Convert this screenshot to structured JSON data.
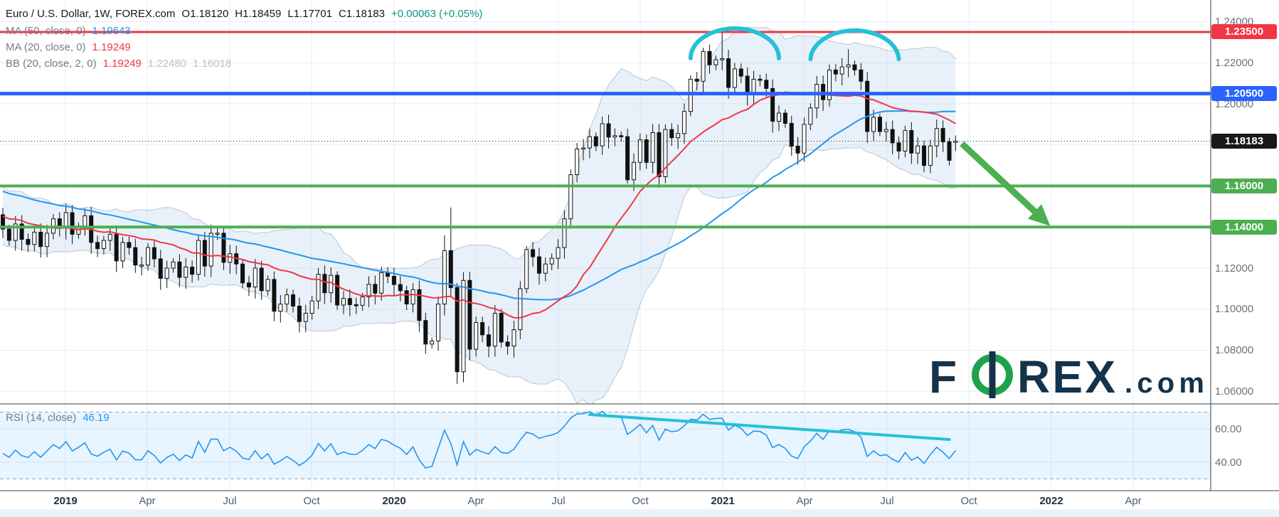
{
  "header": {
    "symbol_line": {
      "title": "Euro / U.S. Dollar, 1W, FOREX.com",
      "open": "O1.18120",
      "high": "H1.18459",
      "low": "L1.17701",
      "close": "C1.18183",
      "change": "+0.00063 (+0.05%)"
    },
    "ma50_row": {
      "label": "MA (50, close, 0)",
      "value": "1.19643"
    },
    "ma20_row": {
      "label": "MA (20, close, 0)",
      "value": "1.19249"
    },
    "bb_row": {
      "label": "BB (20, close, 2, 0)",
      "basis": "1.19249",
      "upper": "1.22480",
      "lower": "1.16018"
    }
  },
  "rsi_pane": {
    "label": "RSI (14, close)",
    "value": "46.19"
  },
  "price_axis": {
    "labels": [
      {
        "text": "1.24000",
        "price": 1.24
      },
      {
        "text": "1.22000",
        "price": 1.22
      },
      {
        "text": "1.20000",
        "price": 1.2
      },
      {
        "text": "1.12000",
        "price": 1.12
      },
      {
        "text": "1.10000",
        "price": 1.1
      },
      {
        "text": "1.08000",
        "price": 1.08
      },
      {
        "text": "1.06000",
        "price": 1.06
      }
    ],
    "badges": [
      {
        "text": "1.23500",
        "price": 1.235,
        "bg": "#f23645",
        "name": "resistance-badge"
      },
      {
        "text": "1.20500",
        "price": 1.205,
        "bg": "#2962ff",
        "name": "pivot-badge"
      },
      {
        "text": "1.18183",
        "price": 1.18183,
        "bg": "#17181b",
        "name": "last-price-badge"
      },
      {
        "text": "1.16000",
        "price": 1.16,
        "bg": "#4caf50",
        "name": "support1-badge"
      },
      {
        "text": "1.14000",
        "price": 1.14,
        "bg": "#4caf50",
        "name": "support2-badge"
      }
    ]
  },
  "rsi_axis": {
    "labels": [
      {
        "text": "60.00",
        "value": 60
      },
      {
        "text": "40.00",
        "value": 40
      }
    ]
  },
  "time_axis": {
    "labels": [
      {
        "text": "2019",
        "year": true
      },
      {
        "text": "Apr"
      },
      {
        "text": "Jul"
      },
      {
        "text": "Oct"
      },
      {
        "text": "2020",
        "year": true
      },
      {
        "text": "Apr"
      },
      {
        "text": "Jul"
      },
      {
        "text": "Oct"
      },
      {
        "text": "2021",
        "year": true
      },
      {
        "text": "Apr"
      },
      {
        "text": "Jul"
      },
      {
        "text": "Oct"
      },
      {
        "text": "2022",
        "year": true
      },
      {
        "text": "Apr"
      }
    ]
  },
  "logo": {
    "f": "F",
    "rex": "REX",
    "com": ".com"
  },
  "chart_data": {
    "type": "candlestick",
    "symbol": "Euro / U.S. Dollar",
    "interval": "1W",
    "feed": "FOREX.com",
    "visible_range": {
      "start_week": "2018-10-29",
      "end_week": "2021-09-20",
      "weeks": 152
    },
    "ylim": [
      1.0537,
      1.2465
    ],
    "ytick_step": 0.02,
    "last_bar": {
      "open": 1.1812,
      "high": 1.18459,
      "low": 1.17701,
      "close": 1.18183,
      "change": 0.00063,
      "change_pct": 0.05
    },
    "current_price": 1.18183,
    "weekly_closes": [
      1.139,
      1.1335,
      1.1415,
      1.134,
      1.1315,
      1.1375,
      1.1305,
      1.137,
      1.144,
      1.1395,
      1.147,
      1.1365,
      1.1405,
      1.1455,
      1.1325,
      1.1295,
      1.1335,
      1.1365,
      1.1235,
      1.1325,
      1.13,
      1.1215,
      1.1215,
      1.13,
      1.1245,
      1.115,
      1.12,
      1.123,
      1.1155,
      1.1205,
      1.117,
      1.1335,
      1.121,
      1.137,
      1.137,
      1.1228,
      1.127,
      1.122,
      1.1128,
      1.1108,
      1.12,
      1.109,
      1.1145,
      1.099,
      1.1025,
      1.107,
      1.1015,
      1.094,
      1.098,
      1.104,
      1.117,
      1.108,
      1.1165,
      1.102,
      1.1052,
      1.1022,
      1.1019,
      1.106,
      1.1121,
      1.1078,
      1.1178,
      1.116,
      1.112,
      1.109,
      1.1025,
      1.1095,
      1.0945,
      1.083,
      1.0845,
      1.1025,
      1.1285,
      1.1105,
      1.0695,
      1.114,
      1.0805,
      1.0935,
      1.0875,
      1.082,
      1.098,
      1.084,
      1.082,
      1.09,
      1.11,
      1.129,
      1.1255,
      1.1175,
      1.122,
      1.1248,
      1.13,
      1.144,
      1.1655,
      1.178,
      1.1785,
      1.184,
      1.1795,
      1.1903,
      1.1838,
      1.1845,
      1.184,
      1.163,
      1.1715,
      1.1825,
      1.1715,
      1.186,
      1.1645,
      1.1875,
      1.1835,
      1.1855,
      1.1963,
      1.212,
      1.211,
      1.2255,
      1.219,
      1.2215,
      1.222,
      1.208,
      1.217,
      1.2135,
      1.2045,
      1.212,
      1.2115,
      1.2075,
      1.1915,
      1.1955,
      1.1905,
      1.1794,
      1.176,
      1.19,
      1.198,
      1.2095,
      1.202,
      1.2165,
      1.2145,
      1.218,
      1.219,
      1.2165,
      1.211,
      1.1865,
      1.1935,
      1.1865,
      1.1875,
      1.181,
      1.177,
      1.187,
      1.176,
      1.1795,
      1.17,
      1.1795,
      1.188,
      1.1815,
      1.1725,
      1.18183
    ],
    "wick_overrides": {
      "21": {
        "l": 1.1177
      },
      "70": {
        "h": 1.136
      },
      "71": {
        "h": 1.1495
      },
      "72": {
        "l": 1.0636
      },
      "99": {
        "l": 1.1612
      },
      "111": {
        "h": 1.2273
      },
      "114": {
        "h": 1.235
      },
      "134": {
        "h": 1.2266
      },
      "151": {
        "o": 1.1812,
        "h": 1.18459,
        "l": 1.17701,
        "c": 1.18183
      }
    },
    "warmup_trend": {
      "start": 1.178,
      "end": 1.138,
      "weeks": 50
    },
    "indicators": {
      "ma50": {
        "period": 50,
        "source": "close",
        "value": 1.19643,
        "color": "#2196f3"
      },
      "ma20": {
        "period": 20,
        "source": "close",
        "value": 1.19249,
        "color": "#f23645"
      },
      "bb": {
        "period": 20,
        "stdev": 2,
        "basis": 1.19249,
        "upper": 1.2248,
        "lower": 1.16018
      },
      "rsi": {
        "period": 14,
        "source": "close",
        "value": 46.19,
        "ticks": [
          40,
          60
        ],
        "band": [
          30,
          70
        ]
      }
    },
    "levels": [
      {
        "price": 1.235,
        "color": "#f23645",
        "width": 3,
        "name": "resistance-line"
      },
      {
        "price": 1.205,
        "color": "#2962ff",
        "width": 5,
        "name": "pivot-line"
      },
      {
        "price": 1.16,
        "color": "#4caf50",
        "width": 4,
        "name": "support-line-1"
      },
      {
        "price": 1.14,
        "color": "#4caf50",
        "width": 4,
        "name": "support-line-2"
      }
    ],
    "annotations": {
      "double_top_arcs": [
        {
          "center_index": 116,
          "half_width_weeks": 7,
          "base_price": 1.2222,
          "peak_price": 1.2367
        },
        {
          "center_index": 135,
          "half_width_weeks": 7,
          "base_price": 1.2218,
          "peak_price": 1.2363
        }
      ],
      "projection_arrow": {
        "from": {
          "index": 152,
          "price": 1.1806
        },
        "to": {
          "index": 166,
          "price": 1.1405
        }
      },
      "rsi_trendline": {
        "from": {
          "index": 93,
          "value": 68.5
        },
        "to": {
          "index": 150,
          "value": 53.6
        }
      }
    }
  }
}
